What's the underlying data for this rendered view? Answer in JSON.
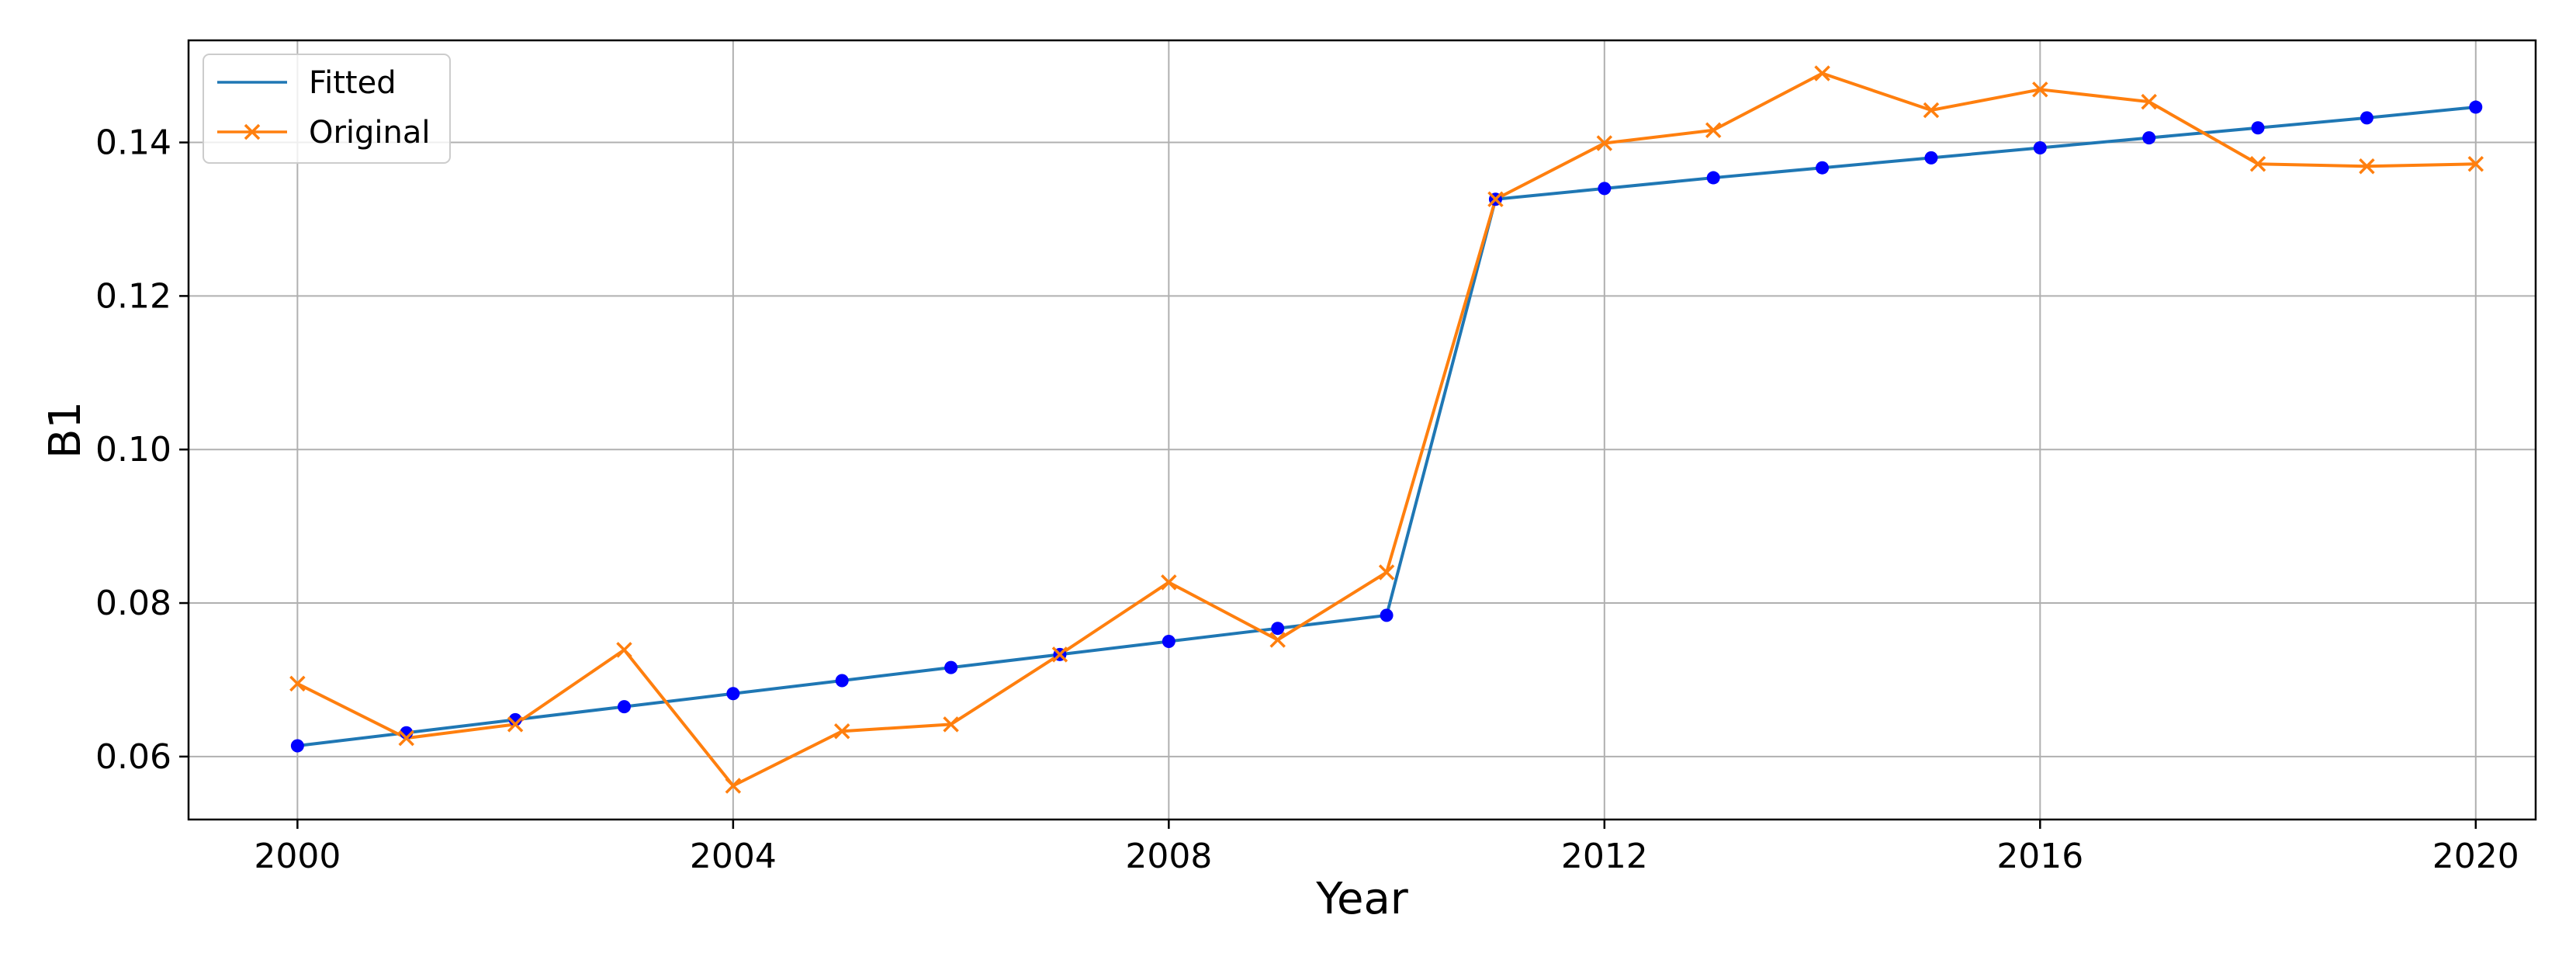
{
  "chart_data": {
    "type": "line",
    "xlabel": "Year",
    "ylabel": "B1",
    "xlim": [
      1999,
      2020.55
    ],
    "ylim": [
      0.0518,
      0.1533
    ],
    "x_ticks": [
      "2000",
      "2004",
      "2008",
      "2012",
      "2016",
      "2020"
    ],
    "x_tick_values": [
      2000,
      2004,
      2008,
      2012,
      2016,
      2020
    ],
    "y_ticks": [
      "0.06",
      "0.08",
      "0.10",
      "0.12",
      "0.14"
    ],
    "y_tick_values": [
      0.06,
      0.08,
      0.1,
      0.12,
      0.14
    ],
    "grid": true,
    "legend_position": "upper-left",
    "x": [
      2000,
      2001,
      2002,
      2003,
      2004,
      2005,
      2006,
      2007,
      2008,
      2009,
      2010,
      2011,
      2012,
      2013,
      2014,
      2015,
      2016,
      2017,
      2018,
      2019,
      2020
    ],
    "series": [
      {
        "name": "Fitted",
        "color": "#1f77b4",
        "marker_color": "#0000ff",
        "marker": "dot",
        "values": [
          0.0614,
          0.0631,
          0.0648,
          0.0665,
          0.0682,
          0.0699,
          0.0716,
          0.0733,
          0.075,
          0.0767,
          0.0784,
          0.1326,
          0.134,
          0.1354,
          0.1367,
          0.138,
          0.1393,
          0.1406,
          0.1419,
          0.1432,
          0.1446
        ]
      },
      {
        "name": "Original",
        "color": "#ff7f0e",
        "marker": "x",
        "values": [
          0.0695,
          0.0624,
          0.0642,
          0.0739,
          0.0562,
          0.0633,
          0.0642,
          0.0733,
          0.0827,
          0.0752,
          0.084,
          0.1326,
          0.1399,
          0.1416,
          0.149,
          0.1442,
          0.1469,
          0.1453,
          0.1372,
          0.1369,
          0.1372
        ]
      }
    ]
  }
}
